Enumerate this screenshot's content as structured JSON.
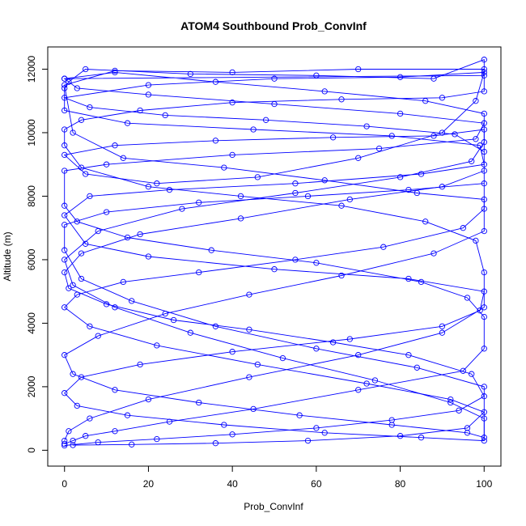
{
  "chart_data": {
    "type": "line",
    "title": "ATOM4 Southbound Prob_ConvInf",
    "xlabel": "Prob_ConvInf",
    "ylabel": "Altitude (m)",
    "xlim": [
      -4,
      104
    ],
    "ylim": [
      -500,
      12700
    ],
    "xticks": [
      0,
      20,
      40,
      60,
      80,
      100
    ],
    "yticks": [
      0,
      2000,
      4000,
      6000,
      8000,
      10000,
      12000
    ],
    "marker": "open-circle",
    "line_color": "#0000ff",
    "grid": false,
    "series": [
      {
        "points": [
          [
            0,
            200
          ],
          [
            2,
            300
          ],
          [
            5,
            450
          ],
          [
            12,
            600
          ],
          [
            25,
            900
          ],
          [
            45,
            1300
          ],
          [
            70,
            1900
          ],
          [
            95,
            2500
          ],
          [
            100,
            3200
          ],
          [
            100,
            4200
          ],
          [
            96,
            4800
          ],
          [
            85,
            5300
          ],
          [
            60,
            5900
          ],
          [
            35,
            6300
          ],
          [
            15,
            6700
          ],
          [
            3,
            7200
          ],
          [
            0,
            7700
          ],
          [
            0,
            8800
          ],
          [
            10,
            9000
          ],
          [
            40,
            9300
          ],
          [
            75,
            9500
          ],
          [
            98,
            9800
          ],
          [
            100,
            10300
          ],
          [
            80,
            10600
          ],
          [
            50,
            10900
          ],
          [
            20,
            11200
          ],
          [
            3,
            11400
          ],
          [
            0,
            11700
          ],
          [
            100,
            11800
          ],
          [
            100,
            12300
          ],
          [
            88,
            11700
          ],
          [
            60,
            11800
          ],
          [
            30,
            11850
          ],
          [
            5,
            12000
          ],
          [
            1,
            11600
          ],
          [
            0,
            11400
          ],
          [
            0,
            10700
          ],
          [
            15,
            10300
          ],
          [
            45,
            10100
          ],
          [
            78,
            9900
          ],
          [
            99,
            9600
          ],
          [
            100,
            9000
          ],
          [
            85,
            8700
          ],
          [
            55,
            8400
          ],
          [
            25,
            8200
          ],
          [
            6,
            8000
          ],
          [
            0,
            7400
          ],
          [
            5,
            6500
          ],
          [
            20,
            6100
          ],
          [
            50,
            5700
          ],
          [
            82,
            5400
          ],
          [
            100,
            5000
          ],
          [
            99,
            4400
          ],
          [
            90,
            3900
          ],
          [
            68,
            3500
          ],
          [
            40,
            3100
          ],
          [
            18,
            2700
          ],
          [
            4,
            2300
          ],
          [
            0,
            1800
          ],
          [
            3,
            1400
          ],
          [
            15,
            1100
          ],
          [
            38,
            800
          ],
          [
            62,
            550
          ],
          [
            85,
            400
          ],
          [
            100,
            300
          ],
          [
            100,
            1000
          ],
          [
            92,
            1500
          ],
          [
            74,
            2200
          ],
          [
            52,
            2900
          ],
          [
            30,
            3700
          ],
          [
            12,
            4500
          ],
          [
            2,
            5200
          ],
          [
            0,
            6000
          ],
          [
            8,
            6900
          ],
          [
            28,
            7600
          ],
          [
            55,
            8100
          ],
          [
            80,
            8600
          ],
          [
            97,
            9100
          ],
          [
            100,
            9700
          ],
          [
            100,
            10600
          ],
          [
            86,
            11000
          ],
          [
            62,
            11300
          ],
          [
            36,
            11600
          ],
          [
            12,
            11900
          ],
          [
            0,
            11700
          ]
        ]
      },
      {
        "points": [
          [
            0,
            150
          ],
          [
            8,
            250
          ],
          [
            22,
            350
          ],
          [
            40,
            500
          ],
          [
            60,
            700
          ],
          [
            78,
            950
          ],
          [
            94,
            1250
          ],
          [
            100,
            1700
          ],
          [
            97,
            2400
          ],
          [
            82,
            3000
          ],
          [
            64,
            3400
          ],
          [
            44,
            3800
          ],
          [
            26,
            4100
          ],
          [
            10,
            4600
          ],
          [
            1,
            5100
          ],
          [
            0,
            5600
          ],
          [
            4,
            6200
          ],
          [
            18,
            6800
          ],
          [
            42,
            7300
          ],
          [
            68,
            7900
          ],
          [
            90,
            8300
          ],
          [
            100,
            8800
          ],
          [
            100,
            9400
          ],
          [
            93,
            9950
          ],
          [
            72,
            10200
          ],
          [
            48,
            10400
          ],
          [
            24,
            10550
          ],
          [
            6,
            10800
          ],
          [
            0,
            11100
          ],
          [
            20,
            11500
          ],
          [
            50,
            11700
          ],
          [
            80,
            11750
          ],
          [
            100,
            11900
          ],
          [
            98,
            11000
          ],
          [
            90,
            10000
          ],
          [
            70,
            9200
          ],
          [
            46,
            8600
          ],
          [
            22,
            8400
          ],
          [
            5,
            8700
          ],
          [
            0,
            9300
          ],
          [
            12,
            9600
          ],
          [
            36,
            9750
          ],
          [
            64,
            9850
          ],
          [
            88,
            9900
          ],
          [
            100,
            10100
          ],
          [
            100,
            7600
          ],
          [
            95,
            7000
          ],
          [
            76,
            6400
          ],
          [
            55,
            6000
          ],
          [
            32,
            5600
          ],
          [
            14,
            5300
          ],
          [
            3,
            4900
          ],
          [
            0,
            4500
          ],
          [
            6,
            3900
          ],
          [
            22,
            3300
          ],
          [
            46,
            2700
          ],
          [
            72,
            2100
          ],
          [
            92,
            1600
          ],
          [
            100,
            1200
          ],
          [
            96,
            700
          ],
          [
            80,
            450
          ],
          [
            58,
            300
          ],
          [
            36,
            220
          ],
          [
            16,
            180
          ],
          [
            2,
            160
          ]
        ]
      },
      {
        "points": [
          [
            0,
            300
          ],
          [
            1,
            600
          ],
          [
            6,
            1000
          ],
          [
            20,
            1600
          ],
          [
            44,
            2300
          ],
          [
            70,
            3000
          ],
          [
            90,
            3700
          ],
          [
            100,
            4500
          ],
          [
            100,
            5600
          ],
          [
            98,
            6600
          ],
          [
            86,
            7200
          ],
          [
            66,
            7700
          ],
          [
            42,
            8000
          ],
          [
            20,
            8300
          ],
          [
            4,
            8900
          ],
          [
            0,
            9600
          ],
          [
            0,
            10100
          ],
          [
            4,
            10400
          ],
          [
            18,
            10700
          ],
          [
            40,
            10950
          ],
          [
            66,
            11050
          ],
          [
            90,
            11100
          ],
          [
            100,
            11300
          ],
          [
            100,
            12000
          ],
          [
            70,
            12000
          ],
          [
            40,
            11900
          ],
          [
            12,
            11950
          ],
          [
            0,
            11500
          ],
          [
            2,
            10000
          ],
          [
            14,
            9200
          ],
          [
            38,
            8900
          ],
          [
            62,
            8500
          ],
          [
            84,
            8100
          ],
          [
            100,
            7900
          ],
          [
            100,
            6900
          ],
          [
            88,
            6200
          ],
          [
            66,
            5500
          ],
          [
            44,
            4900
          ],
          [
            24,
            4300
          ],
          [
            8,
            3600
          ],
          [
            0,
            3000
          ],
          [
            2,
            2400
          ],
          [
            12,
            1900
          ],
          [
            32,
            1500
          ],
          [
            56,
            1100
          ],
          [
            78,
            800
          ],
          [
            96,
            550
          ],
          [
            100,
            400
          ],
          [
            100,
            2000
          ],
          [
            84,
            2600
          ],
          [
            60,
            3200
          ],
          [
            36,
            3900
          ],
          [
            16,
            4700
          ],
          [
            4,
            5400
          ],
          [
            0,
            6300
          ],
          [
            0,
            7100
          ],
          [
            10,
            7500
          ],
          [
            32,
            7800
          ],
          [
            58,
            8000
          ],
          [
            82,
            8200
          ],
          [
            100,
            8400
          ]
        ]
      }
    ]
  }
}
